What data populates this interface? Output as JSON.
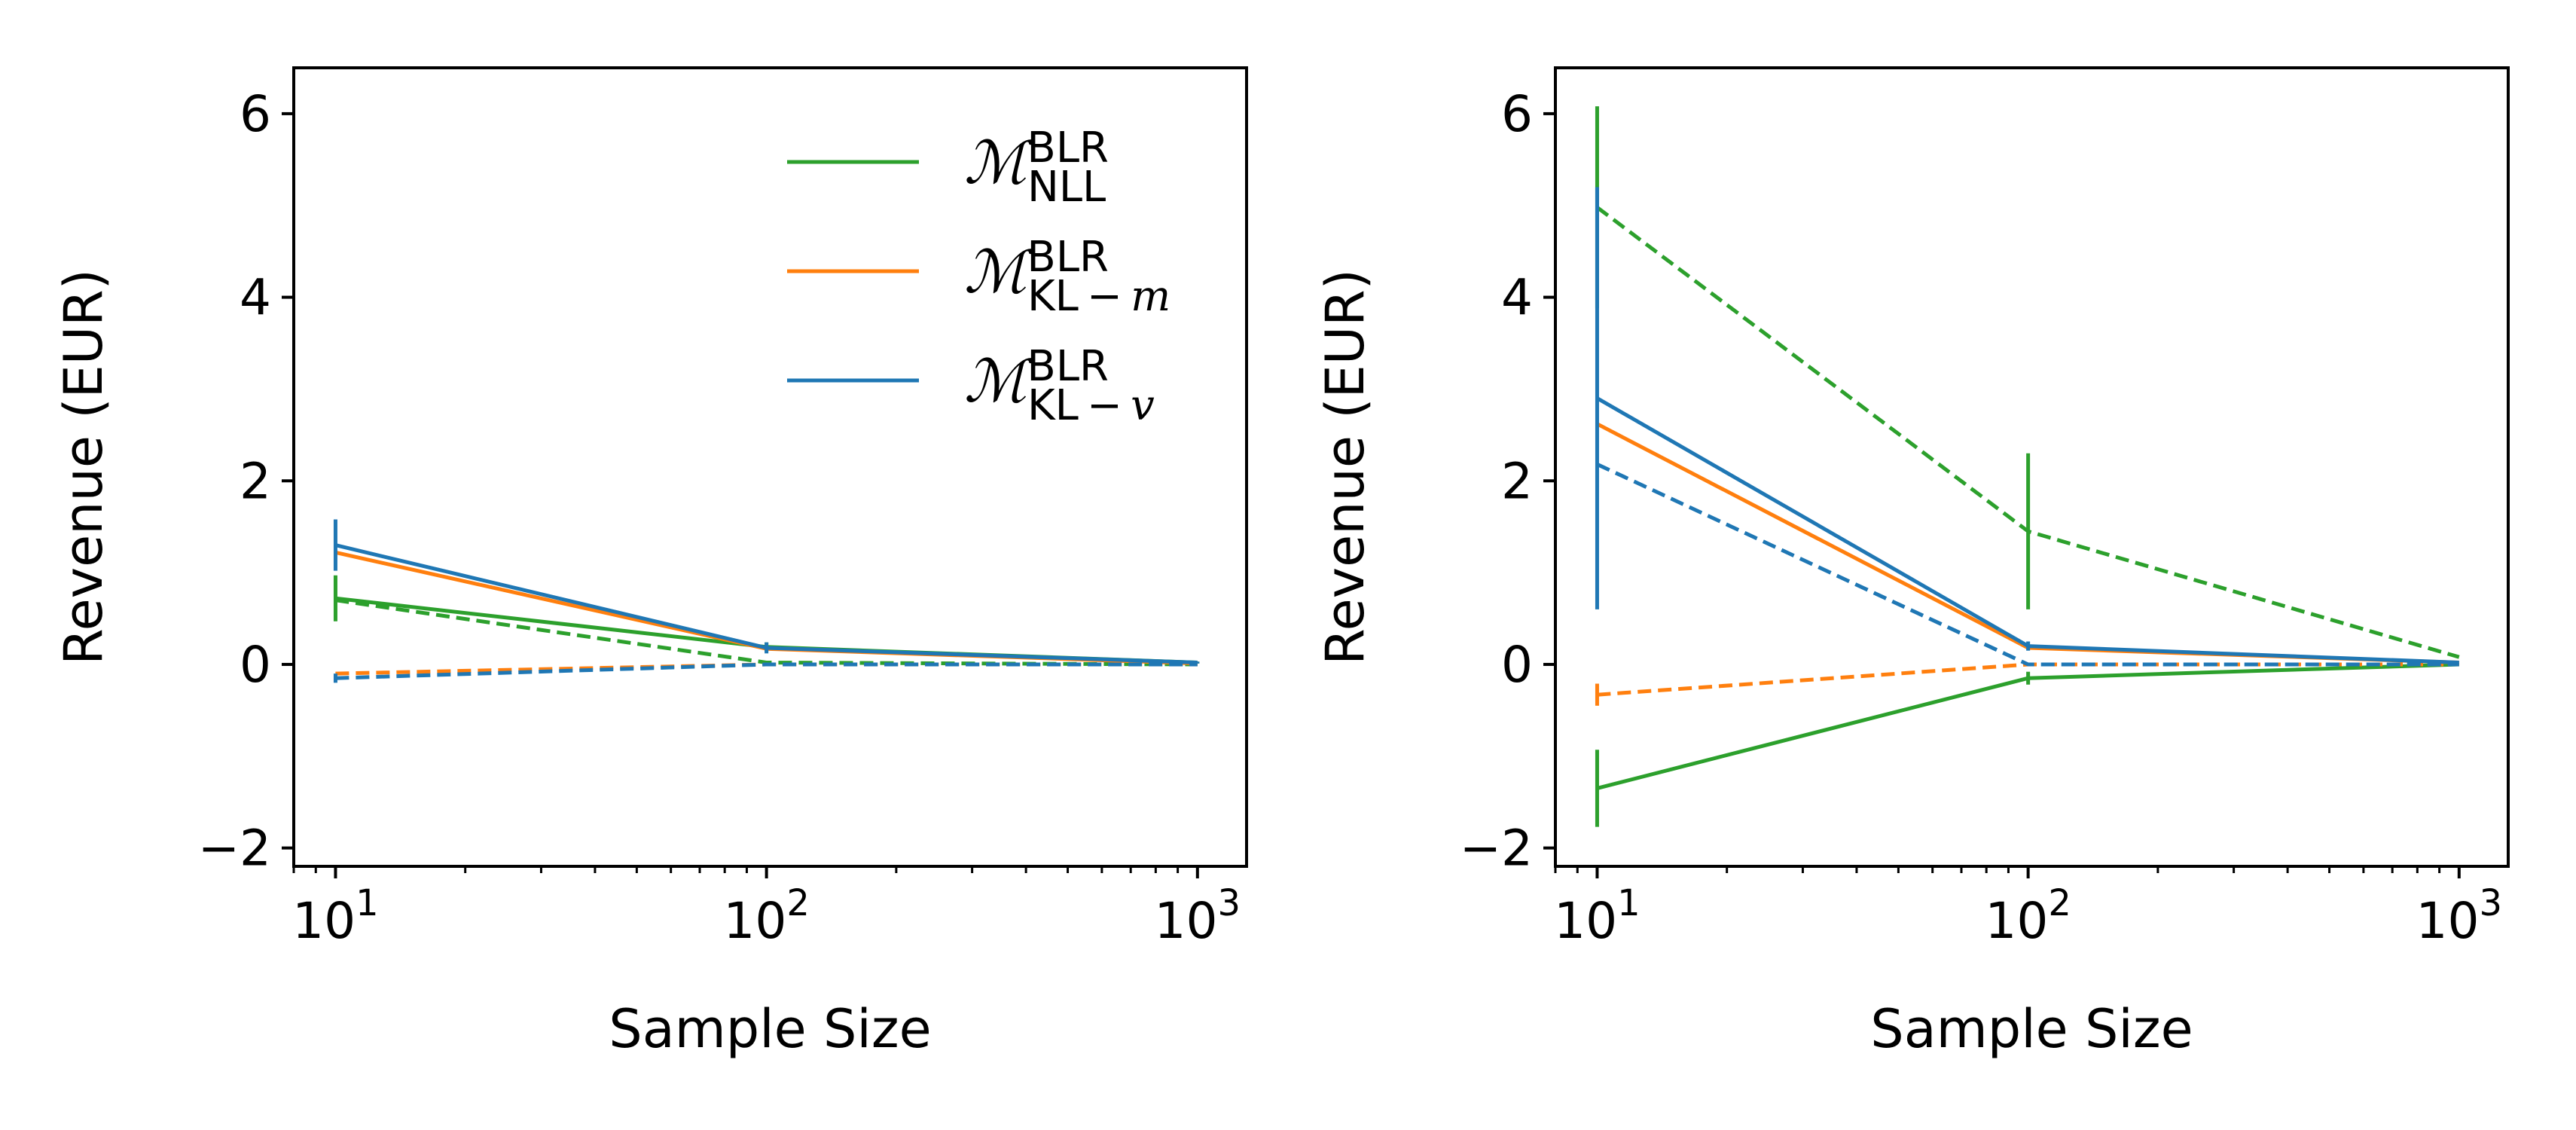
{
  "chart_data": [
    {
      "type": "line",
      "xlabel": "Sample Size",
      "ylabel": "Revenue (EUR)",
      "xscale": "log",
      "xlim": [
        8,
        1300
      ],
      "ylim": [
        -2.2,
        6.5
      ],
      "x": [
        10,
        100,
        1000
      ],
      "x_tick_labels": [
        {
          "base": "10",
          "exp": "1"
        },
        {
          "base": "10",
          "exp": "2"
        },
        {
          "base": "10",
          "exp": "3"
        }
      ],
      "y_ticks": [
        -2,
        0,
        2,
        4,
        6
      ],
      "y_tick_labels": [
        "−2",
        "0",
        "2",
        "4",
        "6"
      ],
      "legend": {
        "placement": "upper-right",
        "entries": [
          {
            "base": "ℳ",
            "sup": "BLR",
            "sub": "NLL",
            "sub_italic": "",
            "color": "#2ca02c"
          },
          {
            "base": "ℳ",
            "sup": "BLR",
            "sub": "KL − ",
            "sub_italic": "m",
            "color": "#ff7f0e"
          },
          {
            "base": "ℳ",
            "sup": "BLR",
            "sub": "KL − ",
            "sub_italic": "v",
            "color": "#1f77b4"
          }
        ]
      },
      "series": [
        {
          "key": "green-solid",
          "color": "#2ca02c",
          "dash": "solid",
          "values": [
            0.72,
            0.19,
            0.02
          ],
          "err": [
            0.25,
            0.05,
            0.01
          ]
        },
        {
          "key": "green-dashed",
          "color": "#2ca02c",
          "dash": "dashed",
          "values": [
            0.7,
            0.02,
            0.0
          ],
          "err": [
            0.0,
            0.0,
            0.0
          ]
        },
        {
          "key": "orange-solid",
          "color": "#ff7f0e",
          "dash": "solid",
          "values": [
            1.22,
            0.17,
            0.01
          ],
          "err": [
            0.0,
            0.0,
            0.0
          ]
        },
        {
          "key": "orange-dashed",
          "color": "#ff7f0e",
          "dash": "dashed",
          "values": [
            -0.1,
            0.0,
            0.0
          ],
          "err": [
            0.0,
            0.0,
            0.0
          ]
        },
        {
          "key": "blue-solid",
          "color": "#1f77b4",
          "dash": "solid",
          "values": [
            1.3,
            0.18,
            0.02
          ],
          "err": [
            0.28,
            0.06,
            0.01
          ]
        },
        {
          "key": "blue-dashed",
          "color": "#1f77b4",
          "dash": "dashed",
          "values": [
            -0.15,
            0.0,
            0.0
          ],
          "err": [
            0.05,
            0.0,
            0.0
          ]
        }
      ]
    },
    {
      "type": "line",
      "xlabel": "Sample Size",
      "ylabel": "Revenue (EUR)",
      "xscale": "log",
      "xlim": [
        8,
        1300
      ],
      "ylim": [
        -2.2,
        6.5
      ],
      "x": [
        10,
        100,
        1000
      ],
      "x_tick_labels": [
        {
          "base": "10",
          "exp": "1"
        },
        {
          "base": "10",
          "exp": "2"
        },
        {
          "base": "10",
          "exp": "3"
        }
      ],
      "y_ticks": [
        -2,
        0,
        2,
        4,
        6
      ],
      "y_tick_labels": [
        "−2",
        "0",
        "2",
        "4",
        "6"
      ],
      "series": [
        {
          "key": "green-solid",
          "color": "#2ca02c",
          "dash": "solid",
          "values": [
            -1.35,
            -0.15,
            0.0
          ],
          "err": [
            0.42,
            0.07,
            0.0
          ]
        },
        {
          "key": "green-dashed",
          "color": "#2ca02c",
          "dash": "dashed",
          "values": [
            4.98,
            1.45,
            0.08
          ],
          "err": [
            1.1,
            0.85,
            0.0
          ]
        },
        {
          "key": "orange-solid",
          "color": "#ff7f0e",
          "dash": "solid",
          "values": [
            2.62,
            0.18,
            0.02
          ],
          "err": [
            0.0,
            0.0,
            0.0
          ]
        },
        {
          "key": "orange-dashed",
          "color": "#ff7f0e",
          "dash": "dashed",
          "values": [
            -0.33,
            0.0,
            0.0
          ],
          "err": [
            0.12,
            0.0,
            0.0
          ]
        },
        {
          "key": "blue-solid",
          "color": "#1f77b4",
          "dash": "solid",
          "values": [
            2.9,
            0.2,
            0.02
          ],
          "err": [
            2.3,
            0.05,
            0.0
          ]
        },
        {
          "key": "blue-dashed",
          "color": "#1f77b4",
          "dash": "dashed",
          "values": [
            2.18,
            0.0,
            0.0
          ],
          "err": [
            0.0,
            0.0,
            0.0
          ]
        }
      ]
    }
  ]
}
